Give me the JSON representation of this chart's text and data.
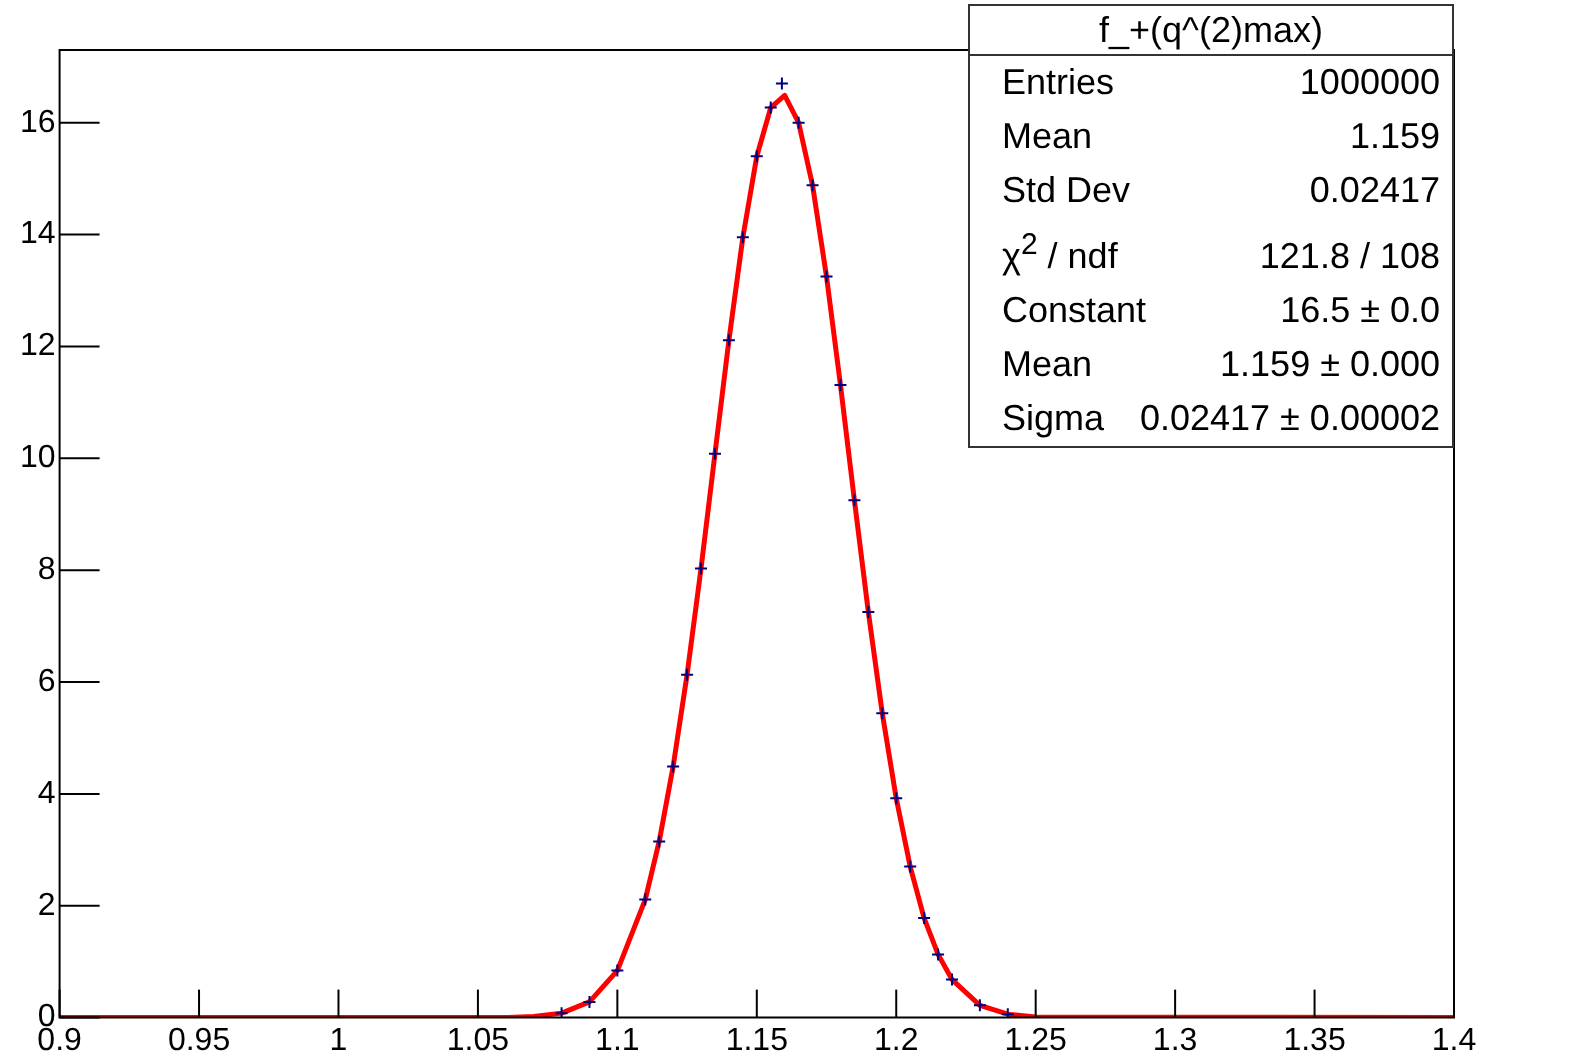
{
  "chart_data": {
    "type": "line",
    "title": "f_+(q^(2)max)",
    "annotations": [
      "Entries",
      "1000000",
      "Mean",
      "1.159",
      "Std Dev",
      "0.02417",
      "χ$^{2}$ / ndf",
      "121.8 / 108",
      "Constant",
      "16.5 ± 0.0",
      "Mean",
      "1.159 ± 0.000",
      "Sigma",
      "0.02417 ± 0.00002"
    ],
    "xlim": [
      0.9,
      1.4
    ],
    "ylim": [
      0,
      17.3
    ],
    "xticks": [
      {
        "value": 0.9,
        "label": "0.9"
      },
      0.95,
      {
        "value": 1,
        "label": "1"
      },
      1.05,
      {
        "value": 1.1,
        "label": "1.1"
      },
      1.15,
      {
        "value": 1.2,
        "label": "1.2"
      },
      1.25,
      {
        "value": 1.3,
        "label": "1.3"
      },
      1.35,
      {
        "value": 1.4,
        "label": "1.4"
      }
    ],
    "yticks": [
      0,
      2,
      4,
      6,
      8,
      10,
      12,
      14,
      16
    ],
    "grid": false,
    "legend": false,
    "series": [
      {
        "type": "scatter",
        "color": "#000080",
        "marker": "cross",
        "x": [
          1.08,
          1.09,
          1.1,
          1.11,
          1.115,
          1.12,
          1.125,
          1.13,
          1.135,
          1.14,
          1.145,
          1.15,
          1.155,
          1.159,
          1.165,
          1.17,
          1.175,
          1.18,
          1.185,
          1.19,
          1.195,
          1.2,
          1.205,
          1.21,
          1.215,
          1.22,
          1.23,
          1.24
        ],
        "values": [
          0.08,
          0.28,
          0.84,
          2.11,
          3.15,
          4.49,
          6.13,
          8.03,
          10.08,
          12.11,
          13.95,
          15.4,
          16.27,
          16.7,
          16,
          14.88,
          13.25,
          11.31,
          9.25,
          7.25,
          5.44,
          3.92,
          2.7,
          1.78,
          1.13,
          0.68,
          0.22,
          0.06
        ]
      },
      {
        "type": "line",
        "color": "#ff0000",
        "marker": "none",
        "line_style": "solid",
        "x": [
          0.9,
          1.06,
          1.07,
          1.08,
          1.09,
          1.1,
          1.11,
          1.115,
          1.12,
          1.125,
          1.13,
          1.135,
          1.14,
          1.145,
          1.15,
          1.155,
          1.16,
          1.165,
          1.17,
          1.175,
          1.18,
          1.185,
          1.19,
          1.195,
          1.2,
          1.205,
          1.21,
          1.215,
          1.22,
          1.23,
          1.24,
          1.25,
          1.4
        ],
        "values": [
          0,
          0,
          0.02,
          0.08,
          0.28,
          0.84,
          2.11,
          3.15,
          4.49,
          6.13,
          8.03,
          10.08,
          12.11,
          13.95,
          15.4,
          16.27,
          16.49,
          16,
          14.88,
          13.25,
          11.31,
          9.25,
          7.25,
          5.44,
          3.92,
          2.7,
          1.78,
          1.13,
          0.68,
          0.22,
          0.06,
          0.01,
          0
        ]
      }
    ]
  }
}
